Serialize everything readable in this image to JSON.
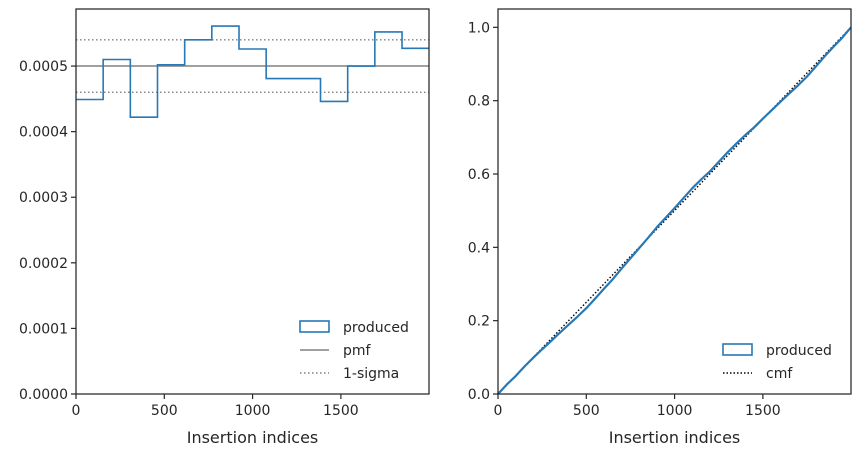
{
  "colors": {
    "produced": "#2878b5",
    "pmf": "#808080",
    "sigma": "#808080",
    "cmf": "#000000",
    "axes": "#262626"
  },
  "chart_data": [
    {
      "type": "step-histogram",
      "xlabel": "Insertion indices",
      "ylabel": "",
      "xlim": [
        0,
        1999
      ],
      "ylim": [
        0,
        0.000587
      ],
      "xticks": [
        0,
        500,
        1000,
        1500
      ],
      "xtick_labels": [
        "0",
        "500",
        "1000",
        "1500"
      ],
      "yticks": [
        0,
        0.0001,
        0.0002,
        0.0003,
        0.0004,
        0.0005
      ],
      "ytick_labels": [
        "0.0000",
        "0.0001",
        "0.0002",
        "0.0003",
        "0.0004",
        "0.0005"
      ],
      "legend_position": "lower right",
      "legend": [
        "produced",
        "pmf",
        "1-sigma"
      ],
      "series": [
        {
          "name": "produced",
          "bin_edges": [
            0,
            153.8,
            307.7,
            461.5,
            615.4,
            769.2,
            923.1,
            1076.9,
            1230.8,
            1384.6,
            1538.5,
            1692.3,
            1846.2,
            2000
          ],
          "values": [
            0.000449,
            0.00051,
            0.000422,
            0.000502,
            0.00054,
            0.000561,
            0.000526,
            0.000481,
            0.000481,
            0.000446,
            0.0005,
            0.000552,
            0.000527
          ]
        },
        {
          "name": "pmf",
          "value": 0.0005
        },
        {
          "name": "1-sigma",
          "values": [
            0.00046,
            0.00054
          ]
        }
      ]
    },
    {
      "type": "line",
      "xlabel": "Insertion indices",
      "ylabel": "",
      "xlim": [
        0,
        1999
      ],
      "ylim": [
        0,
        1.05
      ],
      "xticks": [
        0,
        500,
        1000,
        1500
      ],
      "xtick_labels": [
        "0",
        "500",
        "1000",
        "1500"
      ],
      "yticks": [
        0,
        0.2,
        0.4,
        0.6,
        0.8,
        1.0
      ],
      "ytick_labels": [
        "0.0",
        "0.2",
        "0.4",
        "0.6",
        "0.8",
        "1.0"
      ],
      "legend_position": "lower right",
      "legend": [
        "produced",
        "cmf"
      ],
      "series": [
        {
          "name": "produced",
          "x": [
            0,
            50,
            100,
            150,
            200,
            250,
            300,
            350,
            400,
            450,
            500,
            550,
            600,
            650,
            700,
            750,
            800,
            850,
            900,
            950,
            1000,
            1050,
            1100,
            1150,
            1200,
            1250,
            1300,
            1350,
            1400,
            1450,
            1500,
            1550,
            1600,
            1650,
            1700,
            1750,
            1800,
            1850,
            1900,
            1950,
            1999
          ],
          "y": [
            0,
            0.026,
            0.049,
            0.075,
            0.099,
            0.122,
            0.144,
            0.167,
            0.189,
            0.211,
            0.234,
            0.26,
            0.287,
            0.313,
            0.342,
            0.37,
            0.398,
            0.426,
            0.455,
            0.481,
            0.507,
            0.534,
            0.561,
            0.585,
            0.607,
            0.633,
            0.659,
            0.683,
            0.706,
            0.727,
            0.751,
            0.774,
            0.797,
            0.82,
            0.842,
            0.866,
            0.893,
            0.921,
            0.947,
            0.972,
            1.0
          ]
        },
        {
          "name": "cmf",
          "x": [
            0,
            1999
          ],
          "y": [
            0,
            1.0
          ]
        }
      ]
    }
  ]
}
